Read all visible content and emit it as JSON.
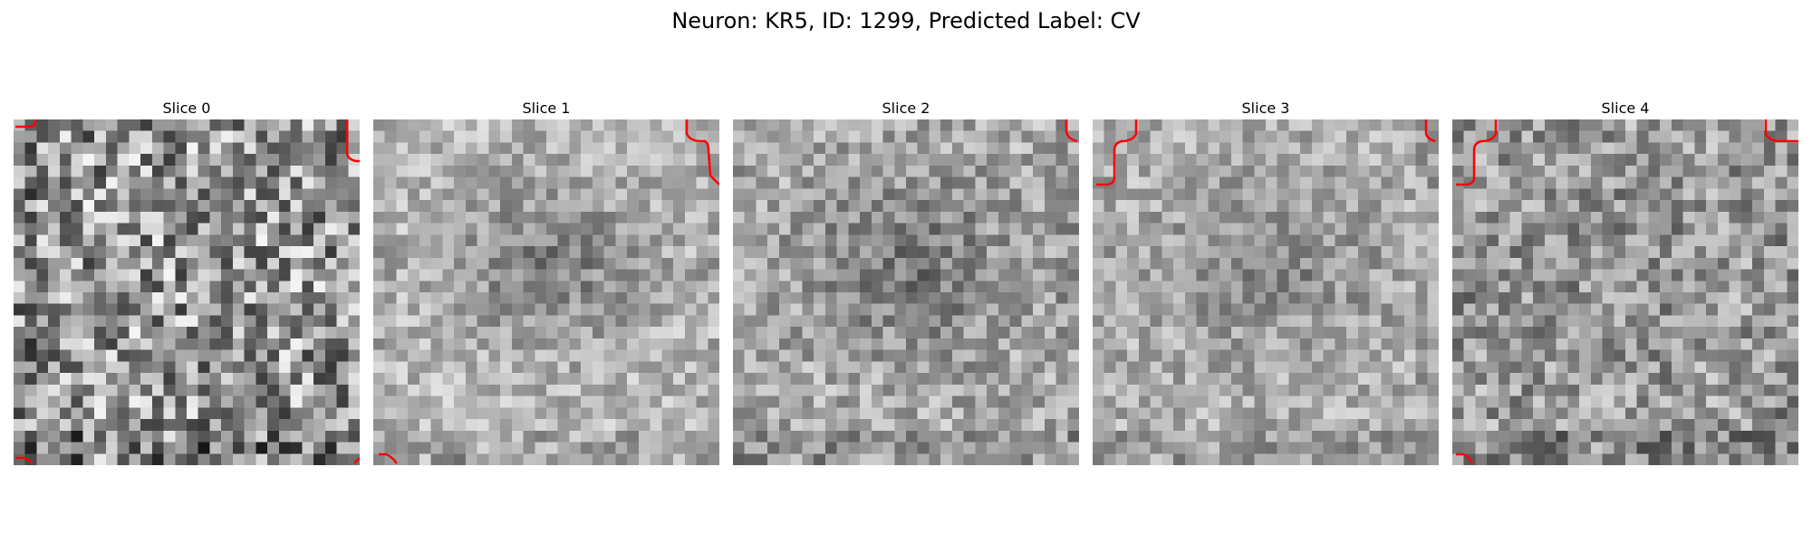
{
  "figure": {
    "title": "Neuron: KR5, ID: 1299, Predicted Label: CV",
    "contour_color": "#ff0000"
  },
  "slices": [
    {
      "label": "Slice 0"
    },
    {
      "label": "Slice 1"
    },
    {
      "label": "Slice 2"
    },
    {
      "label": "Slice 3"
    },
    {
      "label": "Slice 4"
    }
  ]
}
